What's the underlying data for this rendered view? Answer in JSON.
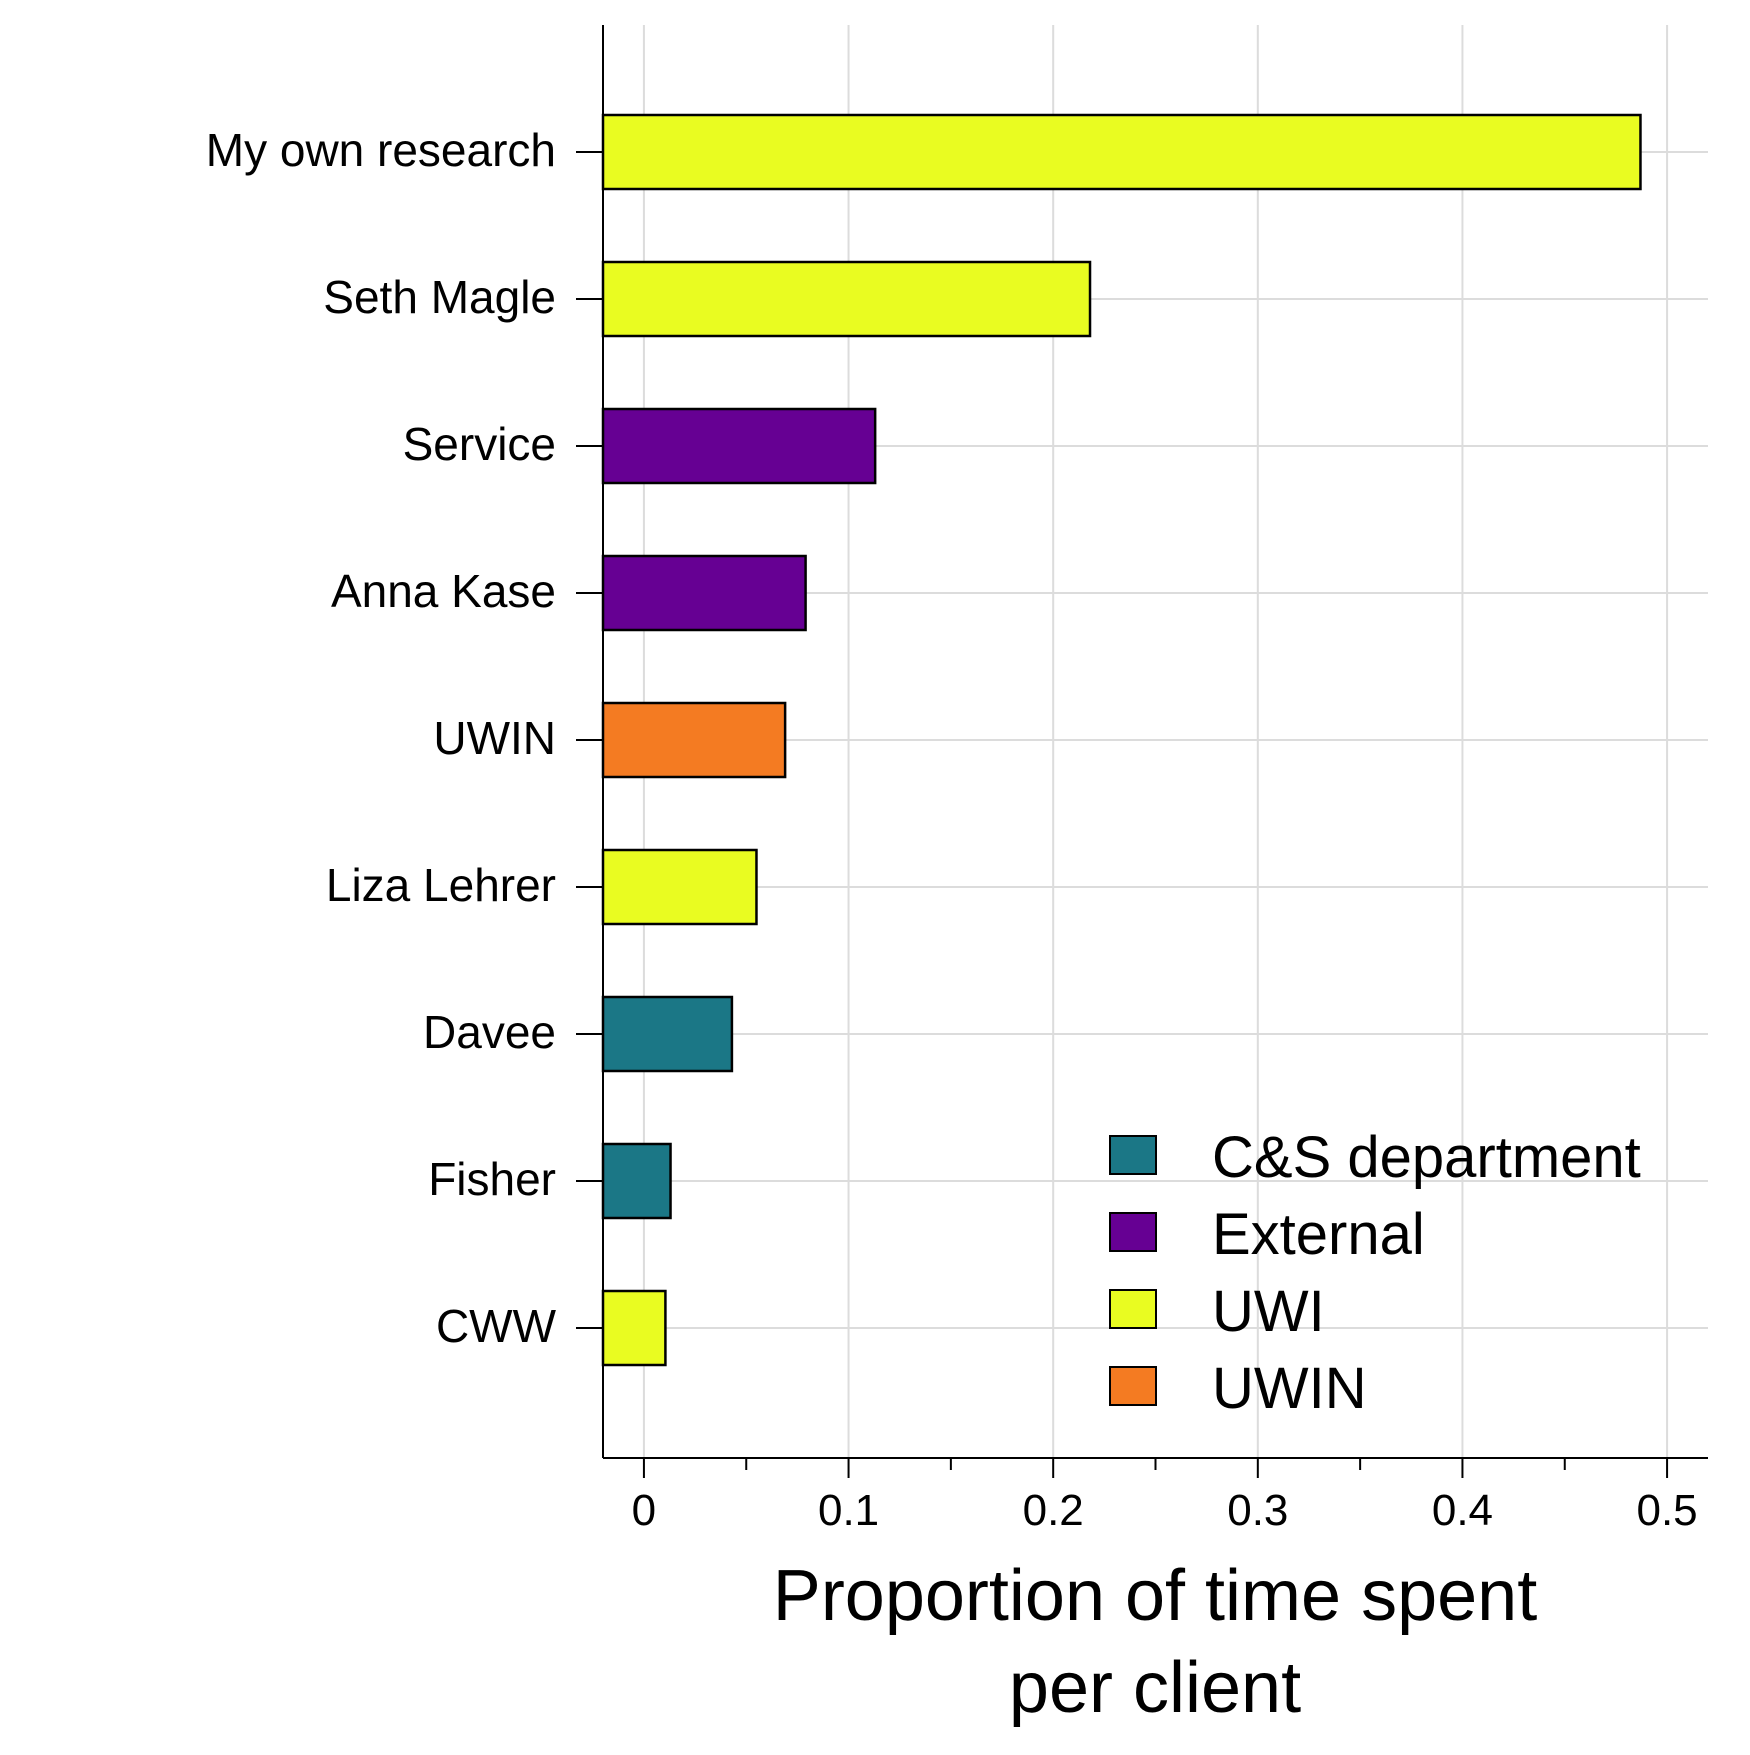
{
  "chart_data": {
    "type": "bar",
    "orientation": "horizontal",
    "categories": [
      "My own research",
      "Seth Magle",
      "Service",
      "Anna Kase",
      "UWIN",
      "Liza Lehrer",
      "Davee",
      "Fisher",
      "CWW"
    ],
    "values": [
      0.487,
      0.218,
      0.113,
      0.079,
      0.069,
      0.055,
      0.043,
      0.013,
      0.0105
    ],
    "groups": [
      "UWI",
      "UWI",
      "External",
      "External",
      "UWIN",
      "UWI",
      "C&S department",
      "C&S department",
      "UWI"
    ],
    "xlabel_line1": "Proportion of time spent",
    "xlabel_line2": "per client",
    "ylabel": "",
    "xlim": [
      -0.02,
      0.52
    ],
    "xticks": [
      0,
      0.1,
      0.2,
      0.3,
      0.4,
      0.5
    ],
    "xtick_labels": [
      "0",
      "0.1",
      "0.2",
      "0.3",
      "0.4",
      "0.5"
    ],
    "minor_xticks": [
      0.05,
      0.15,
      0.25,
      0.35,
      0.45
    ],
    "grid": true,
    "legend_position": "bottom-right",
    "legend": [
      {
        "label": "C&S department",
        "color": "#1b7786"
      },
      {
        "label": "External",
        "color": "#660093"
      },
      {
        "label": "UWI",
        "color": "#e9fc21"
      },
      {
        "label": "UWIN",
        "color": "#f47b22"
      }
    ]
  }
}
